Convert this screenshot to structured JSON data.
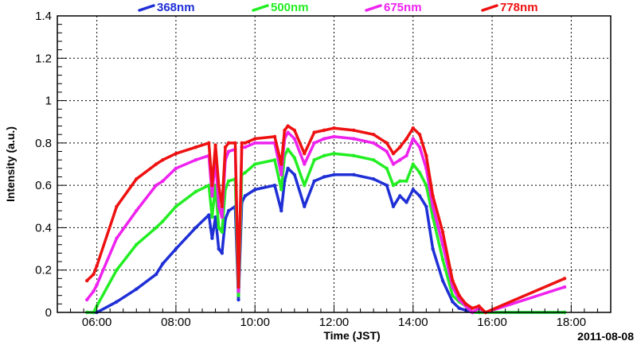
{
  "chart_data": {
    "type": "scatter",
    "xlabel": "Time (JST)",
    "ylabel": "Intensity (a.u.)",
    "date_label": "2011-08-08",
    "xlim": [
      "05:00",
      "19:00"
    ],
    "ylim": [
      0,
      1.4
    ],
    "grid": true,
    "legend_position": "top",
    "x_ticks": [
      "06:00",
      "08:00",
      "10:00",
      "12:00",
      "14:00",
      "16:00",
      "18:00"
    ],
    "y_ticks": [
      "0",
      "0.2",
      "0.4",
      "0.6",
      "0.8",
      "1",
      "1.2",
      "1.4"
    ],
    "series": [
      {
        "name": "368nm",
        "color": "#1f2fd6",
        "x": [
          "05:45",
          "05:55",
          "06:00",
          "06:30",
          "07:00",
          "07:30",
          "07:40",
          "08:00",
          "08:30",
          "08:50",
          "08:55",
          "09:00",
          "09:05",
          "09:10",
          "09:15",
          "09:20",
          "09:30",
          "09:35",
          "09:40",
          "09:45",
          "10:00",
          "10:30",
          "10:40",
          "10:45",
          "10:50",
          "11:00",
          "11:15",
          "11:30",
          "11:45",
          "12:00",
          "12:30",
          "13:00",
          "13:20",
          "13:30",
          "13:40",
          "13:50",
          "14:00",
          "14:10",
          "14:20",
          "14:30",
          "14:45",
          "15:00",
          "15:10",
          "15:20",
          "15:30",
          "15:40",
          "15:50",
          "17:50"
        ],
        "y": [
          0.0,
          0.0,
          0.0,
          0.05,
          0.11,
          0.18,
          0.23,
          0.3,
          0.4,
          0.46,
          0.35,
          0.45,
          0.3,
          0.28,
          0.44,
          0.48,
          0.5,
          0.06,
          0.52,
          0.55,
          0.58,
          0.6,
          0.48,
          0.62,
          0.68,
          0.65,
          0.5,
          0.62,
          0.64,
          0.65,
          0.65,
          0.63,
          0.6,
          0.5,
          0.55,
          0.52,
          0.58,
          0.55,
          0.5,
          0.3,
          0.15,
          0.05,
          0.02,
          0.01,
          0.0,
          0.0,
          0.0,
          0.0
        ]
      },
      {
        "name": "500nm",
        "color": "#22ee22",
        "x": [
          "05:45",
          "05:55",
          "06:00",
          "06:30",
          "07:00",
          "07:30",
          "07:40",
          "08:00",
          "08:30",
          "08:50",
          "08:55",
          "09:00",
          "09:05",
          "09:10",
          "09:15",
          "09:20",
          "09:30",
          "09:35",
          "09:40",
          "09:45",
          "10:00",
          "10:30",
          "10:40",
          "10:45",
          "10:50",
          "11:00",
          "11:15",
          "11:30",
          "11:45",
          "12:00",
          "12:30",
          "13:00",
          "13:20",
          "13:30",
          "13:40",
          "13:50",
          "14:00",
          "14:10",
          "14:20",
          "14:30",
          "14:45",
          "15:00",
          "15:10",
          "15:20",
          "15:30",
          "15:40",
          "15:50",
          "17:50"
        ],
        "y": [
          0.0,
          0.0,
          0.03,
          0.2,
          0.32,
          0.4,
          0.43,
          0.5,
          0.57,
          0.6,
          0.45,
          0.6,
          0.4,
          0.38,
          0.58,
          0.62,
          0.63,
          0.08,
          0.65,
          0.66,
          0.7,
          0.72,
          0.58,
          0.74,
          0.77,
          0.73,
          0.6,
          0.72,
          0.74,
          0.75,
          0.74,
          0.72,
          0.68,
          0.6,
          0.62,
          0.62,
          0.7,
          0.66,
          0.6,
          0.45,
          0.25,
          0.08,
          0.05,
          0.03,
          0.0,
          0.0,
          0.0,
          0.0
        ]
      },
      {
        "name": "675nm",
        "color": "#ee22ee",
        "x": [
          "05:45",
          "05:55",
          "06:00",
          "06:30",
          "07:00",
          "07:30",
          "07:40",
          "08:00",
          "08:30",
          "08:50",
          "08:55",
          "09:00",
          "09:05",
          "09:10",
          "09:15",
          "09:20",
          "09:30",
          "09:35",
          "09:40",
          "09:45",
          "10:00",
          "10:30",
          "10:40",
          "10:45",
          "10:50",
          "11:00",
          "11:15",
          "11:30",
          "11:45",
          "12:00",
          "12:30",
          "13:00",
          "13:20",
          "13:30",
          "13:40",
          "13:50",
          "14:00",
          "14:10",
          "14:20",
          "14:30",
          "14:45",
          "15:00",
          "15:10",
          "15:20",
          "15:30",
          "15:40",
          "15:50",
          "17:50"
        ],
        "y": [
          0.06,
          0.1,
          0.13,
          0.35,
          0.48,
          0.6,
          0.62,
          0.68,
          0.72,
          0.74,
          0.55,
          0.73,
          0.5,
          0.45,
          0.72,
          0.76,
          0.77,
          0.1,
          0.78,
          0.78,
          0.8,
          0.8,
          0.65,
          0.82,
          0.85,
          0.82,
          0.7,
          0.8,
          0.82,
          0.83,
          0.82,
          0.8,
          0.76,
          0.7,
          0.72,
          0.74,
          0.82,
          0.78,
          0.68,
          0.5,
          0.32,
          0.12,
          0.06,
          0.03,
          0.0,
          0.02,
          0.0,
          0.12
        ]
      },
      {
        "name": "778nm",
        "color": "#ee1111",
        "x": [
          "05:45",
          "05:55",
          "06:00",
          "06:30",
          "07:00",
          "07:30",
          "07:40",
          "08:00",
          "08:30",
          "08:50",
          "08:55",
          "09:00",
          "09:05",
          "09:10",
          "09:15",
          "09:20",
          "09:30",
          "09:35",
          "09:40",
          "09:45",
          "10:00",
          "10:30",
          "10:40",
          "10:45",
          "10:50",
          "11:00",
          "11:15",
          "11:30",
          "11:45",
          "12:00",
          "12:30",
          "13:00",
          "13:20",
          "13:30",
          "13:40",
          "13:50",
          "14:00",
          "14:10",
          "14:20",
          "14:30",
          "14:45",
          "15:00",
          "15:10",
          "15:20",
          "15:30",
          "15:40",
          "15:50",
          "17:50"
        ],
        "y": [
          0.15,
          0.18,
          0.22,
          0.5,
          0.63,
          0.7,
          0.72,
          0.75,
          0.78,
          0.8,
          0.6,
          0.79,
          0.6,
          0.5,
          0.78,
          0.8,
          0.8,
          0.12,
          0.8,
          0.8,
          0.82,
          0.83,
          0.7,
          0.86,
          0.88,
          0.86,
          0.75,
          0.85,
          0.86,
          0.87,
          0.86,
          0.84,
          0.8,
          0.75,
          0.78,
          0.82,
          0.87,
          0.84,
          0.74,
          0.55,
          0.38,
          0.15,
          0.08,
          0.04,
          0.02,
          0.03,
          0.0,
          0.16
        ]
      }
    ]
  }
}
